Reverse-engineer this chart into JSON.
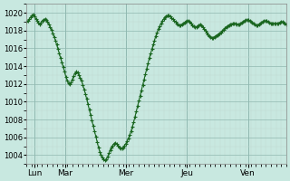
{
  "background_color": "#c8e8e0",
  "plot_bg_color": "#c8e8e0",
  "line_color": "#1a6620",
  "marker": "+",
  "marker_size": 2.5,
  "line_width": 0.8,
  "ylim": [
    1003,
    1021
  ],
  "yticks": [
    1004,
    1006,
    1008,
    1010,
    1012,
    1014,
    1016,
    1018,
    1020
  ],
  "ytick_fontsize": 6,
  "xtick_fontsize": 6.5,
  "grid_color_minor": "#c0d8d0",
  "grid_color_major": "#90b8b0",
  "day_labels": [
    "Lun",
    "Mar",
    "Mer",
    "Jeu",
    "Ven"
  ],
  "day_positions": [
    6,
    30,
    78,
    126,
    174
  ],
  "x_total_hours": 204,
  "xlim": [
    0,
    204
  ],
  "pressure_data": [
    1019.0,
    1019.1,
    1019.3,
    1019.5,
    1019.7,
    1019.8,
    1019.6,
    1019.3,
    1019.1,
    1018.9,
    1018.7,
    1018.9,
    1019.1,
    1019.2,
    1019.3,
    1019.2,
    1019.0,
    1018.7,
    1018.4,
    1018.1,
    1017.7,
    1017.3,
    1016.9,
    1016.4,
    1015.9,
    1015.4,
    1014.9,
    1014.4,
    1013.9,
    1013.4,
    1012.8,
    1012.4,
    1012.1,
    1012.0,
    1012.2,
    1012.5,
    1012.9,
    1013.2,
    1013.4,
    1013.3,
    1013.0,
    1012.7,
    1012.4,
    1011.9,
    1011.4,
    1010.9,
    1010.3,
    1009.7,
    1009.1,
    1008.5,
    1007.9,
    1007.3,
    1006.7,
    1006.1,
    1005.5,
    1004.9,
    1004.4,
    1004.0,
    1003.7,
    1003.5,
    1003.4,
    1003.5,
    1003.8,
    1004.2,
    1004.6,
    1004.9,
    1005.1,
    1005.3,
    1005.4,
    1005.3,
    1005.1,
    1004.9,
    1004.8,
    1004.8,
    1004.9,
    1005.1,
    1005.3,
    1005.6,
    1005.9,
    1006.3,
    1006.7,
    1007.2,
    1007.7,
    1008.3,
    1008.9,
    1009.5,
    1010.1,
    1010.7,
    1011.3,
    1011.9,
    1012.5,
    1013.1,
    1013.7,
    1014.3,
    1014.9,
    1015.4,
    1015.9,
    1016.4,
    1016.9,
    1017.4,
    1017.8,
    1018.2,
    1018.5,
    1018.8,
    1019.1,
    1019.3,
    1019.5,
    1019.6,
    1019.7,
    1019.7,
    1019.6,
    1019.4,
    1019.3,
    1019.1,
    1019.0,
    1018.8,
    1018.7,
    1018.6,
    1018.6,
    1018.7,
    1018.8,
    1018.9,
    1019.0,
    1019.1,
    1019.1,
    1019.0,
    1018.8,
    1018.6,
    1018.5,
    1018.4,
    1018.4,
    1018.5,
    1018.6,
    1018.7,
    1018.6,
    1018.4,
    1018.2,
    1018.0,
    1017.8,
    1017.6,
    1017.4,
    1017.3,
    1017.2,
    1017.2,
    1017.3,
    1017.4,
    1017.5,
    1017.6,
    1017.7,
    1017.8,
    1018.0,
    1018.1,
    1018.3,
    1018.4,
    1018.5,
    1018.6,
    1018.7,
    1018.7,
    1018.8,
    1018.8,
    1018.8,
    1018.7,
    1018.7,
    1018.7,
    1018.8,
    1018.9,
    1019.0,
    1019.1,
    1019.2,
    1019.2,
    1019.2,
    1019.1,
    1019.0,
    1018.9,
    1018.8,
    1018.7,
    1018.6,
    1018.6,
    1018.7,
    1018.8,
    1018.9,
    1019.0,
    1019.1,
    1019.1,
    1019.1,
    1019.0,
    1018.9,
    1018.8,
    1018.8,
    1018.8,
    1018.8,
    1018.8,
    1018.8,
    1018.8,
    1018.9,
    1019.0,
    1019.0,
    1018.9,
    1018.8,
    1018.7
  ]
}
